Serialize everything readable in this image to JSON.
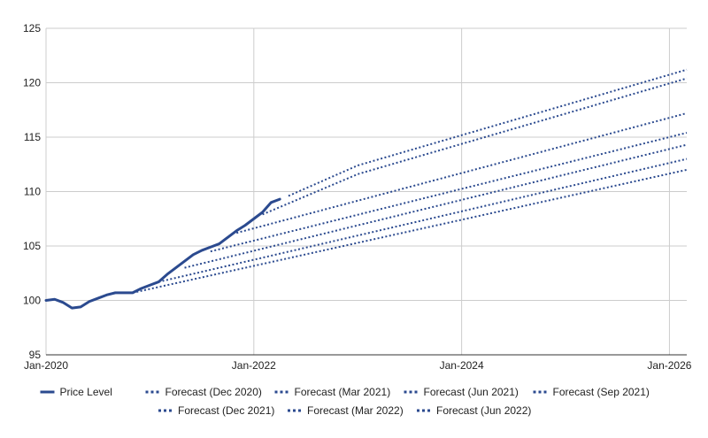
{
  "chart_data": {
    "type": "line",
    "title": "",
    "xlabel": "",
    "ylabel": "",
    "x_range": [
      "2020-01",
      "2026-03"
    ],
    "ylim": [
      95,
      125
    ],
    "y_ticks": [
      95,
      100,
      105,
      110,
      115,
      120,
      125
    ],
    "x_ticks": [
      {
        "date": "2020-01",
        "label": "Jan-2020"
      },
      {
        "date": "2022-01",
        "label": "Jan-2022"
      },
      {
        "date": "2024-01",
        "label": "Jan-2024"
      },
      {
        "date": "2026-01",
        "label": "Jan-2026"
      }
    ],
    "grid": true,
    "legend_position": "bottom",
    "color": "#2b4a8f",
    "series": [
      {
        "name": "Price Level",
        "style": "solid",
        "points": [
          [
            "2020-01",
            100.0
          ],
          [
            "2020-02",
            100.1
          ],
          [
            "2020-03",
            99.8
          ],
          [
            "2020-04",
            99.3
          ],
          [
            "2020-05",
            99.4
          ],
          [
            "2020-06",
            99.9
          ],
          [
            "2020-07",
            100.2
          ],
          [
            "2020-08",
            100.5
          ],
          [
            "2020-09",
            100.7
          ],
          [
            "2020-10",
            100.7
          ],
          [
            "2020-11",
            100.7
          ],
          [
            "2020-12",
            101.1
          ],
          [
            "2021-01",
            101.4
          ],
          [
            "2021-02",
            101.7
          ],
          [
            "2021-03",
            102.4
          ],
          [
            "2021-04",
            103.0
          ],
          [
            "2021-05",
            103.6
          ],
          [
            "2021-06",
            104.2
          ],
          [
            "2021-07",
            104.6
          ],
          [
            "2021-08",
            104.9
          ],
          [
            "2021-09",
            105.2
          ],
          [
            "2021-10",
            105.8
          ],
          [
            "2021-11",
            106.4
          ],
          [
            "2021-12",
            106.9
          ],
          [
            "2022-01",
            107.5
          ],
          [
            "2022-02",
            108.1
          ],
          [
            "2022-03",
            109.0
          ],
          [
            "2022-04",
            109.3
          ]
        ]
      },
      {
        "name": "Forecast (Dec 2020)",
        "style": "dotted",
        "points": [
          [
            "2020-11",
            100.7
          ],
          [
            "2026-03",
            112.0
          ]
        ]
      },
      {
        "name": "Forecast (Mar 2021)",
        "style": "dotted",
        "points": [
          [
            "2021-02",
            101.7
          ],
          [
            "2026-03",
            113.0
          ]
        ]
      },
      {
        "name": "Forecast (Jun 2021)",
        "style": "dotted",
        "points": [
          [
            "2021-05",
            103.0
          ],
          [
            "2026-03",
            114.3
          ]
        ]
      },
      {
        "name": "Forecast (Sep 2021)",
        "style": "dotted",
        "points": [
          [
            "2021-08",
            104.5
          ],
          [
            "2026-03",
            115.4
          ]
        ]
      },
      {
        "name": "Forecast (Dec 2021)",
        "style": "dotted",
        "points": [
          [
            "2021-11",
            106.2
          ],
          [
            "2026-03",
            117.2
          ]
        ]
      },
      {
        "name": "Forecast (Mar 2022)",
        "style": "dotted",
        "points": [
          [
            "2022-02",
            107.9
          ],
          [
            "2023-01",
            111.6
          ],
          [
            "2026-03",
            120.4
          ]
        ]
      },
      {
        "name": "Forecast (Jun 2022)",
        "style": "dotted",
        "points": [
          [
            "2022-05",
            109.6
          ],
          [
            "2023-01",
            112.4
          ],
          [
            "2026-03",
            121.2
          ]
        ]
      }
    ]
  }
}
